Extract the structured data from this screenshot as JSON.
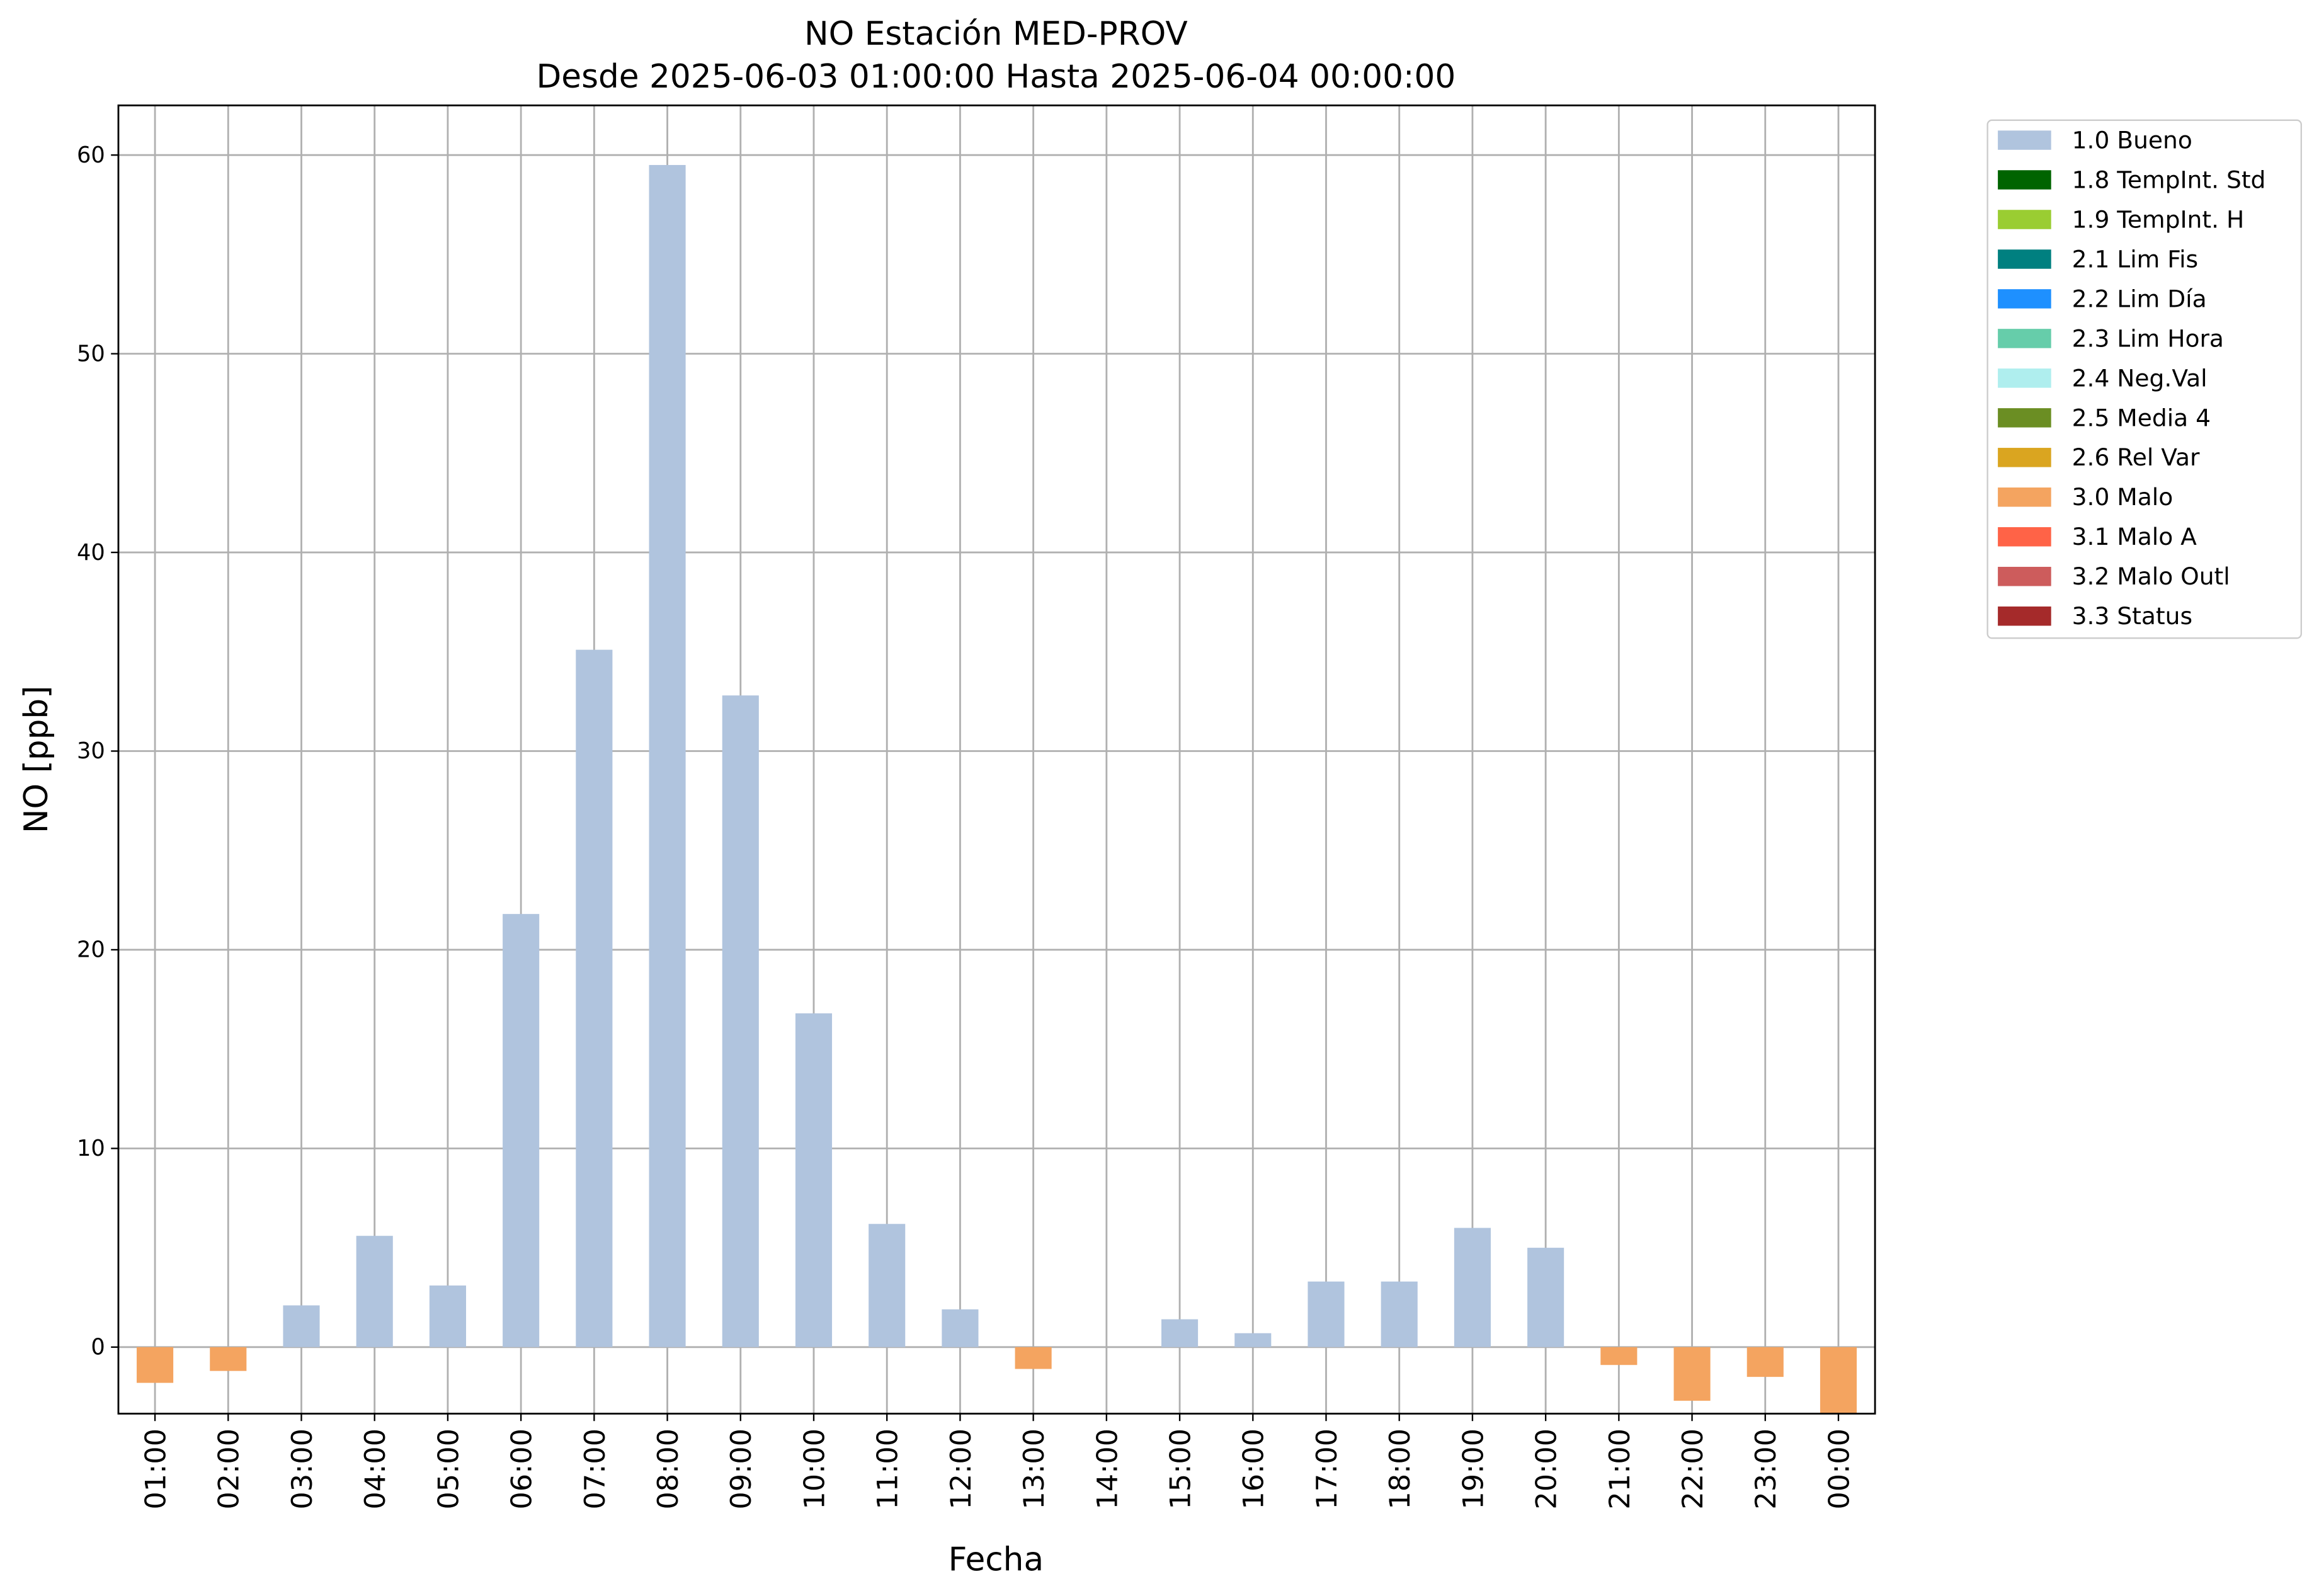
{
  "chart_data": {
    "type": "bar",
    "title": "NO Estación MED-PROV",
    "subtitle": "Desde 2025-06-03 01:00:00 Hasta 2025-06-04 00:00:00",
    "xlabel": "Fecha",
    "ylabel": "NO [ppb]",
    "categories": [
      "01:00",
      "02:00",
      "03:00",
      "04:00",
      "05:00",
      "06:00",
      "07:00",
      "08:00",
      "09:00",
      "10:00",
      "11:00",
      "12:00",
      "13:00",
      "14:00",
      "15:00",
      "16:00",
      "17:00",
      "18:00",
      "19:00",
      "20:00",
      "21:00",
      "22:00",
      "23:00",
      "00:00"
    ],
    "series": [
      {
        "name": "1.0 Bueno",
        "color": "#b0c4de",
        "values": [
          null,
          null,
          2.1,
          5.6,
          3.1,
          21.8,
          35.1,
          59.5,
          32.8,
          16.8,
          6.2,
          1.9,
          null,
          null,
          1.4,
          0.7,
          3.3,
          3.3,
          6.0,
          5.0,
          null,
          null,
          null,
          null
        ]
      },
      {
        "name": "1.8 TempInt. Std",
        "color": "#006400",
        "values": [
          null,
          null,
          null,
          null,
          null,
          null,
          null,
          null,
          null,
          null,
          null,
          null,
          null,
          null,
          null,
          null,
          null,
          null,
          null,
          null,
          null,
          null,
          null,
          null
        ]
      },
      {
        "name": "1.9 TempInt. H",
        "color": "#9acd32",
        "values": [
          null,
          null,
          null,
          null,
          null,
          null,
          null,
          null,
          null,
          null,
          null,
          null,
          null,
          null,
          null,
          null,
          null,
          null,
          null,
          null,
          null,
          null,
          null,
          null
        ]
      },
      {
        "name": "2.1 Lim Fis",
        "color": "#008080",
        "values": [
          null,
          null,
          null,
          null,
          null,
          null,
          null,
          null,
          null,
          null,
          null,
          null,
          null,
          null,
          null,
          null,
          null,
          null,
          null,
          null,
          null,
          null,
          null,
          null
        ]
      },
      {
        "name": "2.2 Lim Día",
        "color": "#1e90ff",
        "values": [
          null,
          null,
          null,
          null,
          null,
          null,
          null,
          null,
          null,
          null,
          null,
          null,
          null,
          null,
          null,
          null,
          null,
          null,
          null,
          null,
          null,
          null,
          null,
          null
        ]
      },
      {
        "name": "2.3 Lim Hora",
        "color": "#66cdaa",
        "values": [
          null,
          null,
          null,
          null,
          null,
          null,
          null,
          null,
          null,
          null,
          null,
          null,
          null,
          null,
          null,
          null,
          null,
          null,
          null,
          null,
          null,
          null,
          null,
          null
        ]
      },
      {
        "name": "2.4 Neg.Val",
        "color": "#afeeee",
        "values": [
          null,
          null,
          null,
          null,
          null,
          null,
          null,
          null,
          null,
          null,
          null,
          null,
          null,
          null,
          null,
          null,
          null,
          null,
          null,
          null,
          null,
          null,
          null,
          null
        ]
      },
      {
        "name": "2.5 Media 4",
        "color": "#6b8e23",
        "values": [
          null,
          null,
          null,
          null,
          null,
          null,
          null,
          null,
          null,
          null,
          null,
          null,
          null,
          null,
          null,
          null,
          null,
          null,
          null,
          null,
          null,
          null,
          null,
          null
        ]
      },
      {
        "name": "2.6 Rel Var",
        "color": "#daa520",
        "values": [
          null,
          null,
          null,
          null,
          null,
          null,
          null,
          null,
          null,
          null,
          null,
          null,
          null,
          null,
          null,
          null,
          null,
          null,
          null,
          null,
          null,
          null,
          null,
          null
        ]
      },
      {
        "name": "3.0 Malo",
        "color": "#f4a460",
        "values": [
          -1.8,
          -1.2,
          null,
          null,
          null,
          null,
          null,
          null,
          null,
          null,
          null,
          null,
          -1.1,
          null,
          null,
          null,
          null,
          null,
          null,
          null,
          -0.9,
          -2.7,
          -1.5,
          -3.5
        ]
      },
      {
        "name": "3.1 Malo A",
        "color": "#ff6347",
        "values": [
          null,
          null,
          null,
          null,
          null,
          null,
          null,
          null,
          null,
          null,
          null,
          null,
          null,
          null,
          null,
          null,
          null,
          null,
          null,
          null,
          null,
          null,
          null,
          null
        ]
      },
      {
        "name": "3.2 Malo Outl",
        "color": "#cd5c5c",
        "values": [
          null,
          null,
          null,
          null,
          null,
          null,
          null,
          null,
          null,
          null,
          null,
          null,
          null,
          null,
          null,
          null,
          null,
          null,
          null,
          null,
          null,
          null,
          null,
          null
        ]
      },
      {
        "name": "3.3 Status",
        "color": "#a52a2a",
        "values": [
          null,
          null,
          null,
          null,
          null,
          null,
          null,
          null,
          null,
          null,
          null,
          null,
          null,
          null,
          null,
          null,
          null,
          null,
          null,
          null,
          null,
          null,
          null,
          null
        ]
      }
    ],
    "ylim": [
      -3.35,
      62.5
    ],
    "yticks": [
      0,
      10,
      20,
      30,
      40,
      50,
      60
    ],
    "grid": true,
    "stacked": true,
    "legend": "outside upper right"
  }
}
